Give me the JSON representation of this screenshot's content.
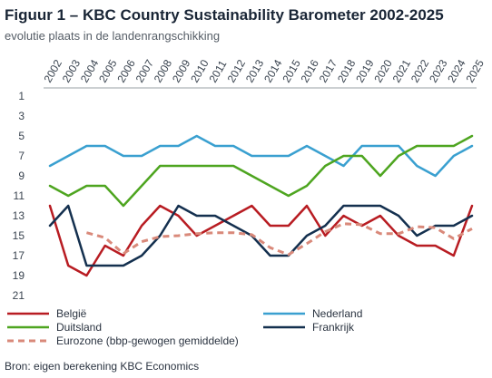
{
  "chart_data": {
    "type": "line",
    "title": "Figuur 1 – KBC Country Sustainability Barometer 2002-2025",
    "subtitle": "evolutie plaats in de landenrangschikking",
    "source": "Bron: eigen berekening KBC Economics",
    "x": [
      "2002",
      "2003",
      "2004",
      "2005",
      "2006",
      "2007",
      "2008",
      "2009",
      "2010",
      "2011",
      "2012",
      "2013",
      "2014",
      "2015",
      "2016",
      "2017",
      "2018",
      "2019",
      "2020",
      "2021",
      "2022",
      "2023",
      "2024",
      "2025"
    ],
    "y_ticks": [
      1,
      3,
      5,
      7,
      9,
      11,
      13,
      15,
      17,
      19,
      21
    ],
    "ylim": [
      1,
      21
    ],
    "y_inverted": true,
    "grid": false,
    "legend_position": "bottom",
    "series": [
      {
        "name": "België",
        "color": "#b81c22",
        "dash": "solid",
        "values": [
          12,
          18,
          19,
          16,
          17,
          14,
          12,
          13,
          15,
          14,
          13,
          12,
          14,
          14,
          12,
          15,
          13,
          14,
          13,
          15,
          16,
          16,
          17,
          12
        ]
      },
      {
        "name": "Nederland",
        "color": "#3aa0d0",
        "dash": "solid",
        "values": [
          8,
          7,
          6,
          6,
          7,
          7,
          6,
          6,
          5,
          6,
          6,
          7,
          7,
          7,
          6,
          7,
          8,
          6,
          6,
          6,
          8,
          9,
          7,
          6
        ]
      },
      {
        "name": "Duitsland",
        "color": "#4ea520",
        "dash": "solid",
        "values": [
          10,
          11,
          10,
          10,
          12,
          10,
          8,
          8,
          8,
          8,
          8,
          9,
          10,
          11,
          10,
          8,
          7,
          7,
          9,
          7,
          6,
          6,
          6,
          5
        ]
      },
      {
        "name": "Frankrijk",
        "color": "#14304f",
        "dash": "solid",
        "values": [
          14,
          12,
          18,
          18,
          18,
          17,
          15,
          12,
          13,
          13,
          14,
          15,
          17,
          17,
          15,
          14,
          12,
          12,
          12,
          13,
          15,
          14,
          14,
          13
        ]
      },
      {
        "name": "Eurozone (bbp-gewogen gemiddelde)",
        "color": "#d9897a",
        "dash": "dashed",
        "values": [
          null,
          null,
          14.7,
          15.2,
          16.8,
          15.6,
          15.1,
          15,
          14.8,
          14.7,
          14.7,
          14.9,
          16.2,
          16.9,
          15.8,
          14.6,
          13.8,
          13.9,
          14.8,
          14.8,
          14.1,
          14.2,
          15.3,
          14.3
        ]
      }
    ]
  }
}
